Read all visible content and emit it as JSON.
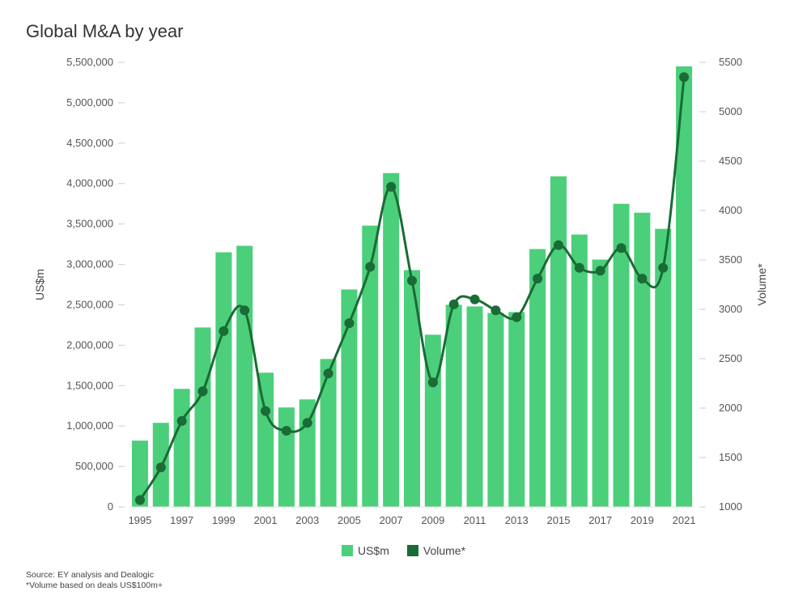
{
  "chart_data": {
    "type": "bar+line",
    "title": "Global M&A by year",
    "categories": [
      "1995",
      "1996",
      "1997",
      "1998",
      "1999",
      "2000",
      "2001",
      "2002",
      "2003",
      "2004",
      "2005",
      "2006",
      "2007",
      "2008",
      "2009",
      "2010",
      "2011",
      "2012",
      "2013",
      "2014",
      "2015",
      "2016",
      "2017",
      "2018",
      "2019",
      "2020",
      "2021"
    ],
    "x_tick_labels": [
      "1995",
      "1997",
      "1999",
      "2001",
      "2003",
      "2005",
      "2007",
      "2009",
      "2011",
      "2013",
      "2015",
      "2017",
      "2019",
      "2021"
    ],
    "series": [
      {
        "name": "US$m",
        "type": "bar",
        "axis": "left",
        "color": "#4bcf7a",
        "values": [
          820000,
          1040000,
          1460000,
          2220000,
          3150000,
          3230000,
          1660000,
          1230000,
          1330000,
          1830000,
          2690000,
          3480000,
          4130000,
          2930000,
          2130000,
          2500000,
          2480000,
          2400000,
          2410000,
          3190000,
          4090000,
          3370000,
          3060000,
          3750000,
          3640000,
          3440000,
          5450000
        ]
      },
      {
        "name": "Volume*",
        "type": "line",
        "axis": "right",
        "color": "#1a6b35",
        "values": [
          1070,
          1400,
          1870,
          2170,
          2780,
          2990,
          1970,
          1770,
          1850,
          2350,
          2860,
          3430,
          4240,
          3290,
          2260,
          3050,
          3100,
          2990,
          2920,
          3310,
          3650,
          3420,
          3390,
          3620,
          3310,
          3420,
          5350
        ]
      }
    ],
    "y_left": {
      "label": "US$m",
      "min": 0,
      "max": 5500000,
      "ticks": [
        "0",
        "500,000",
        "1,000,000",
        "1,500,000",
        "2,000,000",
        "2,500,000",
        "3,000,000",
        "3,500,000",
        "4,000,000",
        "4,500,000",
        "5,000,000",
        "5,500,000"
      ]
    },
    "y_right": {
      "label": "Volume*",
      "min": 1000,
      "max": 5500,
      "ticks": [
        "1000",
        "1500",
        "2000",
        "2500",
        "3000",
        "3500",
        "4000",
        "4500",
        "5000",
        "5500"
      ]
    },
    "legend": [
      "US$m",
      "Volume*"
    ],
    "legend_position": "bottom-center"
  },
  "footnotes": {
    "source": "Source: EY analysis and Dealogic",
    "volume_note": "*Volume based on deals US$100m+"
  }
}
